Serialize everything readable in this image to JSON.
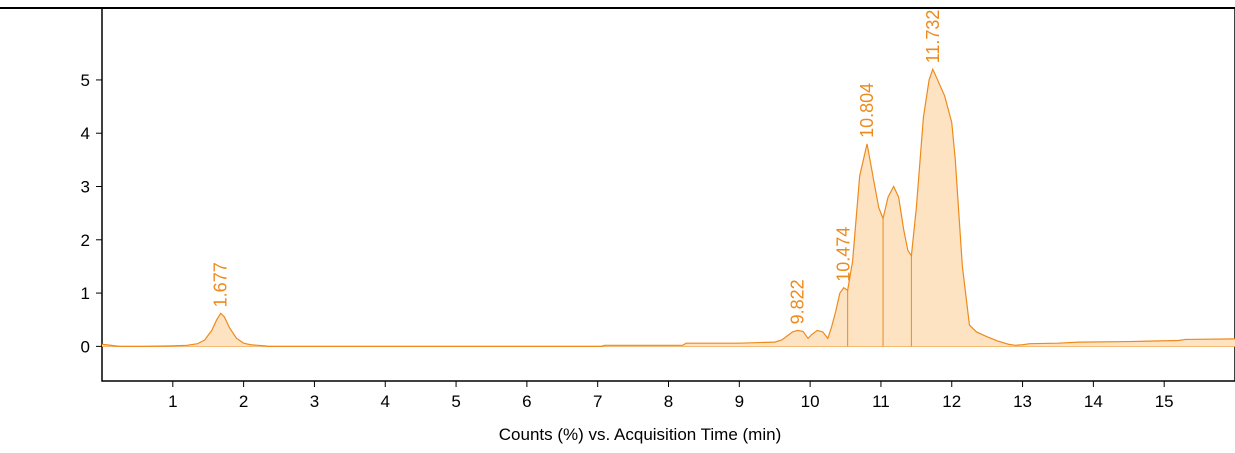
{
  "chart_data": {
    "type": "area",
    "title": "",
    "xlabel": "Counts (%) vs. Acquisition Time (min)",
    "ylabel": "",
    "xlim": [
      0.0,
      16.0
    ],
    "ylim": [
      -0.65,
      6.35
    ],
    "x_ticks": [
      "1",
      "2",
      "3",
      "4",
      "5",
      "6",
      "7",
      "8",
      "9",
      "10",
      "11",
      "12",
      "13",
      "14",
      "15"
    ],
    "y_ticks": [
      "0",
      "1",
      "2",
      "3",
      "4",
      "5"
    ],
    "grid": false,
    "legend": "none",
    "colors": {
      "line": "#ee8a1c",
      "fill": "#fde3c2",
      "label": "#ee8a1c",
      "axis": "#000000"
    },
    "series": [
      {
        "x": [
          0.0,
          0.25,
          0.6,
          1.0,
          1.2,
          1.35,
          1.45,
          1.55,
          1.62,
          1.677,
          1.73,
          1.8,
          1.9,
          2.0,
          2.1,
          2.2,
          2.3,
          2.35,
          3,
          4,
          5,
          6,
          7.05,
          7.1,
          8.2,
          8.25,
          9.0,
          9.5,
          9.6,
          9.7,
          9.75,
          9.822,
          9.9,
          9.97,
          10.02,
          10.1,
          10.18,
          10.25,
          10.3,
          10.36,
          10.42,
          10.474,
          10.53,
          10.6,
          10.7,
          10.804,
          10.9,
          10.97,
          11.03,
          11.1,
          11.18,
          11.25,
          11.32,
          11.38,
          11.43,
          11.5,
          11.6,
          11.68,
          11.732,
          11.8,
          11.9,
          12.0,
          12.05,
          12.15,
          12.25,
          12.35,
          12.5,
          12.65,
          12.8,
          12.9,
          13.0,
          13.1,
          13.5,
          13.8,
          14.5,
          15.2,
          15.3,
          16.0
        ],
        "y": [
          0.04,
          0.0,
          0.0,
          0.01,
          0.02,
          0.05,
          0.12,
          0.3,
          0.5,
          0.62,
          0.55,
          0.35,
          0.15,
          0.06,
          0.03,
          0.02,
          0.01,
          0.0,
          0.0,
          0.0,
          0.0,
          0.0,
          0.0,
          0.02,
          0.02,
          0.06,
          0.06,
          0.08,
          0.12,
          0.22,
          0.27,
          0.3,
          0.28,
          0.15,
          0.22,
          0.3,
          0.27,
          0.15,
          0.35,
          0.65,
          1.0,
          1.1,
          1.05,
          1.6,
          3.2,
          3.8,
          3.1,
          2.6,
          2.4,
          2.8,
          3.0,
          2.8,
          2.2,
          1.8,
          1.7,
          2.6,
          4.3,
          5.0,
          5.2,
          5.0,
          4.7,
          4.2,
          3.5,
          1.5,
          0.4,
          0.27,
          0.18,
          0.1,
          0.04,
          0.02,
          0.03,
          0.05,
          0.06,
          0.08,
          0.09,
          0.11,
          0.13,
          0.14
        ]
      }
    ],
    "peaks": [
      {
        "label": "1.677",
        "x": 1.677,
        "y": 0.62
      },
      {
        "label": "9.822",
        "x": 9.822,
        "y": 0.3
      },
      {
        "label": "10.474",
        "x": 10.474,
        "y": 1.1
      },
      {
        "label": "10.804",
        "x": 10.804,
        "y": 3.8
      },
      {
        "label": "11.732",
        "x": 11.732,
        "y": 5.2
      }
    ],
    "integration_splits": [
      10.53,
      11.03,
      11.43
    ]
  }
}
